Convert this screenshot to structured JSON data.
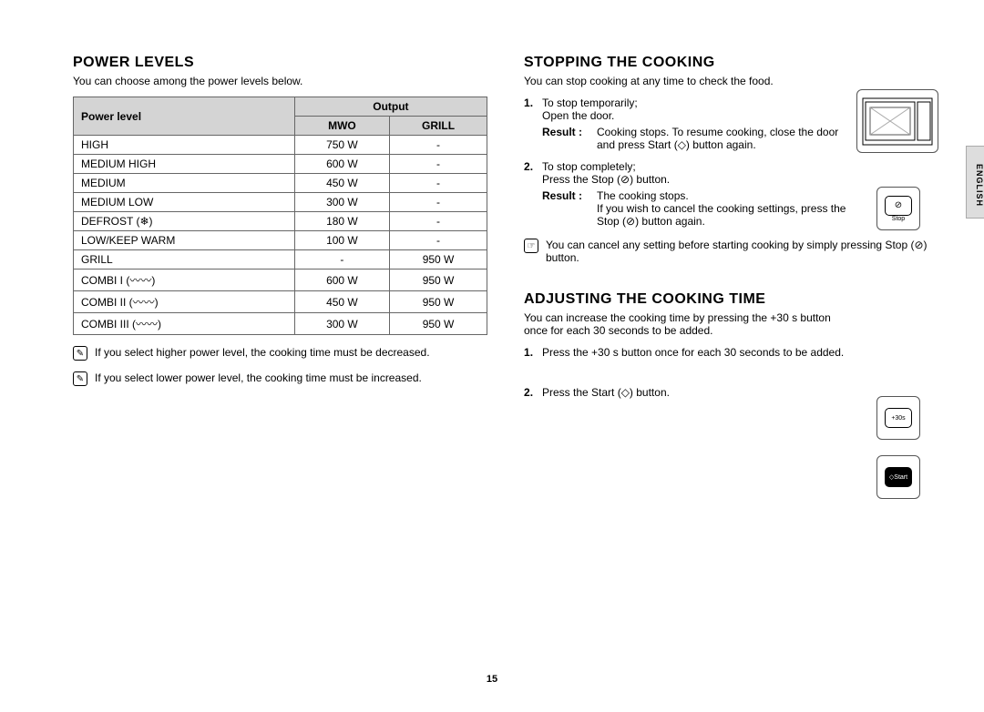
{
  "page_number": "15",
  "side_tab": "ENGLISH",
  "left": {
    "title": "POWER LEVELS",
    "intro": "You can choose among the power levels below.",
    "table": {
      "header_powerlevel": "Power level",
      "header_output": "Output",
      "header_mwo": "MWO",
      "header_grill": "GRILL",
      "rows": [
        {
          "name": "HIGH",
          "mwo": "750 W",
          "grill": "-"
        },
        {
          "name": "MEDIUM HIGH",
          "mwo": "600 W",
          "grill": "-"
        },
        {
          "name": "MEDIUM",
          "mwo": "450 W",
          "grill": "-"
        },
        {
          "name": "MEDIUM LOW",
          "mwo": "300 W",
          "grill": "-"
        },
        {
          "name": "DEFROST (❄)",
          "mwo": "180 W",
          "grill": "-"
        },
        {
          "name": "LOW/KEEP WARM",
          "mwo": "100 W",
          "grill": "-"
        },
        {
          "name": "GRILL",
          "mwo": "-",
          "grill": "950 W"
        },
        {
          "name": "COMBI I (〰〰)",
          "mwo": "600 W",
          "grill": "950 W"
        },
        {
          "name": "COMBI II (〰〰)",
          "mwo": "450 W",
          "grill": "950 W"
        },
        {
          "name": "COMBI III (〰〰)",
          "mwo": "300 W",
          "grill": "950 W"
        }
      ]
    },
    "note1": "If you select higher power level, the cooking time must be decreased.",
    "note2": "If you select lower power level, the cooking time must be increased."
  },
  "right": {
    "sec1": {
      "title": "STOPPING THE COOKING",
      "intro": "You can stop cooking at any time to check the food.",
      "step1_a": "To stop temporarily;",
      "step1_b": "Open the door.",
      "step1_result_label": "Result :",
      "step1_result": "Cooking stops. To resume cooking, close the door and press Start (◇) button again.",
      "step2_a": "To stop completely;",
      "step2_b": "Press the Stop (⊘) button.",
      "step2_result_label": "Result :",
      "step2_result": "The cooking stops.\nIf you wish to cancel the cooking settings, press the Stop (⊘) button again.",
      "note": "You can cancel any setting before starting cooking by simply pressing Stop (⊘) button."
    },
    "sec2": {
      "title": "ADJUSTING THE COOKING TIME",
      "intro": "You can increase the cooking time by pressing the +30 s button once for each 30 seconds to be added.",
      "step1": "Press the +30 s button once for each 30 seconds to be added.",
      "step2": "Press the Start (◇) button."
    },
    "figures": {
      "stop_btn": "Stop",
      "plus30_btn": "+30s",
      "start_btn": "◇Start"
    }
  }
}
